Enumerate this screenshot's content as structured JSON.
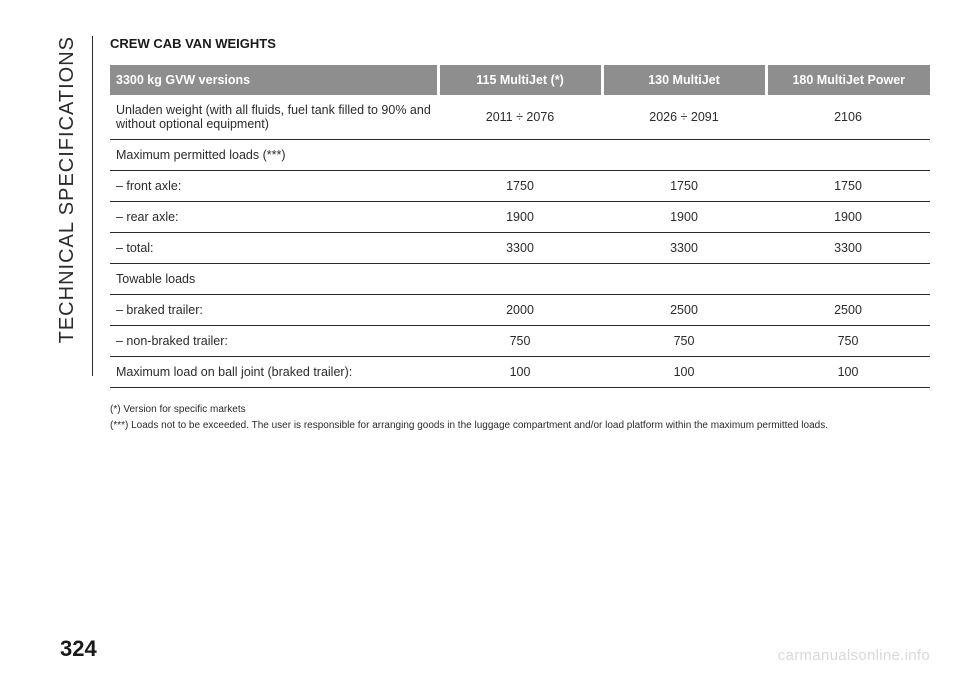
{
  "side_label": "TECHNICAL SPECIFICATIONS",
  "title": "CREW CAB VAN WEIGHTS",
  "page_number": "324",
  "watermark": "carmanualsonline.info",
  "table": {
    "header_bg": "#8e8e8e",
    "header_gap_color": "#ffffff",
    "row_border_color": "#2b2b2b",
    "text_color": "#2b2b2b",
    "columns": [
      "3300 kg GVW versions",
      "115 MultiJet (*)",
      "130 MultiJet",
      "180 MultiJet Power"
    ],
    "rows": [
      [
        "Unladen weight (with all fluids, fuel tank filled to 90% and without optional equipment)",
        "2011 ÷ 2076",
        "2026 ÷ 2091",
        "2106"
      ],
      [
        "Maximum permitted loads (***)",
        "",
        "",
        ""
      ],
      [
        "– front axle:",
        "1750",
        "1750",
        "1750"
      ],
      [
        "– rear axle:",
        "1900",
        "1900",
        "1900"
      ],
      [
        "– total:",
        "3300",
        "3300",
        "3300"
      ],
      [
        "Towable loads",
        "",
        "",
        ""
      ],
      [
        "– braked trailer:",
        "2000",
        "2500",
        "2500"
      ],
      [
        "– non-braked trailer:",
        "750",
        "750",
        "750"
      ],
      [
        "Maximum load on ball joint (braked trailer):",
        "100",
        "100",
        "100"
      ]
    ]
  },
  "footnotes": [
    "(*) Version for specific markets",
    "(***) Loads not to be exceeded. The user is responsible for arranging goods in the luggage compartment and/or load platform within the maximum permitted loads."
  ]
}
